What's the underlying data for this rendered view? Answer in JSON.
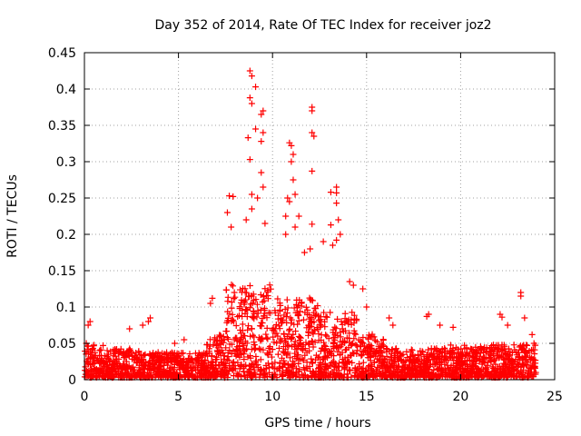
{
  "chart_data": {
    "type": "scatter",
    "title": "Day 352 of 2014, Rate Of TEC Index for receiver joz2",
    "xlabel": "GPS time / hours",
    "ylabel": "ROTI / TECUs",
    "xlim": [
      0,
      25
    ],
    "ylim": [
      0,
      0.45
    ],
    "xticks": [
      "0",
      "5",
      "10",
      "15",
      "20",
      "25"
    ],
    "yticks": [
      "0",
      "0.05",
      "0.1",
      "0.15",
      "0.2",
      "0.25",
      "0.3",
      "0.35",
      "0.4",
      "0.45"
    ],
    "grid": true,
    "marker": "+",
    "color": "#ff0000",
    "series": [
      {
        "name": "ROTI",
        "points": [
          [
            8.8,
            0.425
          ],
          [
            8.9,
            0.418
          ],
          [
            9.1,
            0.403
          ],
          [
            8.8,
            0.388
          ],
          [
            8.9,
            0.38
          ],
          [
            9.5,
            0.37
          ],
          [
            9.4,
            0.365
          ],
          [
            8.7,
            0.333
          ],
          [
            9.1,
            0.345
          ],
          [
            9.5,
            0.34
          ],
          [
            9.4,
            0.328
          ],
          [
            8.8,
            0.303
          ],
          [
            9.4,
            0.285
          ],
          [
            9.5,
            0.265
          ],
          [
            8.9,
            0.255
          ],
          [
            9.2,
            0.25
          ],
          [
            8.6,
            0.22
          ],
          [
            8.9,
            0.235
          ],
          [
            9.6,
            0.215
          ],
          [
            10.9,
            0.326
          ],
          [
            11.0,
            0.322
          ],
          [
            11.1,
            0.31
          ],
          [
            11.0,
            0.3
          ],
          [
            11.1,
            0.275
          ],
          [
            10.8,
            0.25
          ],
          [
            10.9,
            0.245
          ],
          [
            11.2,
            0.255
          ],
          [
            10.7,
            0.225
          ],
          [
            11.4,
            0.225
          ],
          [
            11.2,
            0.21
          ],
          [
            10.7,
            0.2
          ],
          [
            12.1,
            0.375
          ],
          [
            12.1,
            0.37
          ],
          [
            12.1,
            0.34
          ],
          [
            12.2,
            0.335
          ],
          [
            12.1,
            0.287
          ],
          [
            12.1,
            0.214
          ],
          [
            12.0,
            0.18
          ],
          [
            11.7,
            0.175
          ],
          [
            13.4,
            0.265
          ],
          [
            13.4,
            0.257
          ],
          [
            13.1,
            0.258
          ],
          [
            13.4,
            0.243
          ],
          [
            13.5,
            0.22
          ],
          [
            13.1,
            0.213
          ],
          [
            13.6,
            0.2
          ],
          [
            13.4,
            0.192
          ],
          [
            12.7,
            0.19
          ],
          [
            13.2,
            0.185
          ],
          [
            7.9,
            0.252
          ],
          [
            7.7,
            0.253
          ],
          [
            7.6,
            0.23
          ],
          [
            7.8,
            0.21
          ],
          [
            6.8,
            0.112
          ],
          [
            6.7,
            0.105
          ],
          [
            3.5,
            0.085
          ],
          [
            3.4,
            0.08
          ],
          [
            0.3,
            0.08
          ],
          [
            0.2,
            0.075
          ],
          [
            2.4,
            0.07
          ],
          [
            3.1,
            0.075
          ],
          [
            14.3,
            0.13
          ],
          [
            14.1,
            0.135
          ],
          [
            14.8,
            0.125
          ],
          [
            15.0,
            0.1
          ],
          [
            16.2,
            0.085
          ],
          [
            16.4,
            0.075
          ],
          [
            18.3,
            0.09
          ],
          [
            18.2,
            0.087
          ],
          [
            18.9,
            0.075
          ],
          [
            19.6,
            0.072
          ],
          [
            22.1,
            0.09
          ],
          [
            22.2,
            0.086
          ],
          [
            23.2,
            0.12
          ],
          [
            23.2,
            0.115
          ],
          [
            23.4,
            0.085
          ],
          [
            23.8,
            0.062
          ],
          [
            22.5,
            0.075
          ],
          [
            5.3,
            0.055
          ],
          [
            4.8,
            0.05
          ],
          [
            1.7,
            0.04
          ],
          [
            0.1,
            0.05
          ],
          [
            23.9,
            0.05
          ]
        ],
        "density_clusters": [
          {
            "x_range": [
              0.0,
              1.0
            ],
            "y_max": 0.045
          },
          {
            "x_range": [
              1.0,
              3.0
            ],
            "y_max": 0.04
          },
          {
            "x_range": [
              3.0,
              6.5
            ],
            "y_max": 0.035
          },
          {
            "x_range": [
              6.5,
              7.5
            ],
            "y_max": 0.06
          },
          {
            "x_range": [
              7.5,
              10.0
            ],
            "y_max": 0.13
          },
          {
            "x_range": [
              10.0,
              12.5
            ],
            "y_max": 0.11
          },
          {
            "x_range": [
              12.5,
              14.5
            ],
            "y_max": 0.09
          },
          {
            "x_range": [
              14.5,
              16.0
            ],
            "y_max": 0.06
          },
          {
            "x_range": [
              16.0,
              19.0
            ],
            "y_max": 0.04
          },
          {
            "x_range": [
              19.0,
              24.0
            ],
            "y_max": 0.045
          }
        ]
      }
    ]
  }
}
